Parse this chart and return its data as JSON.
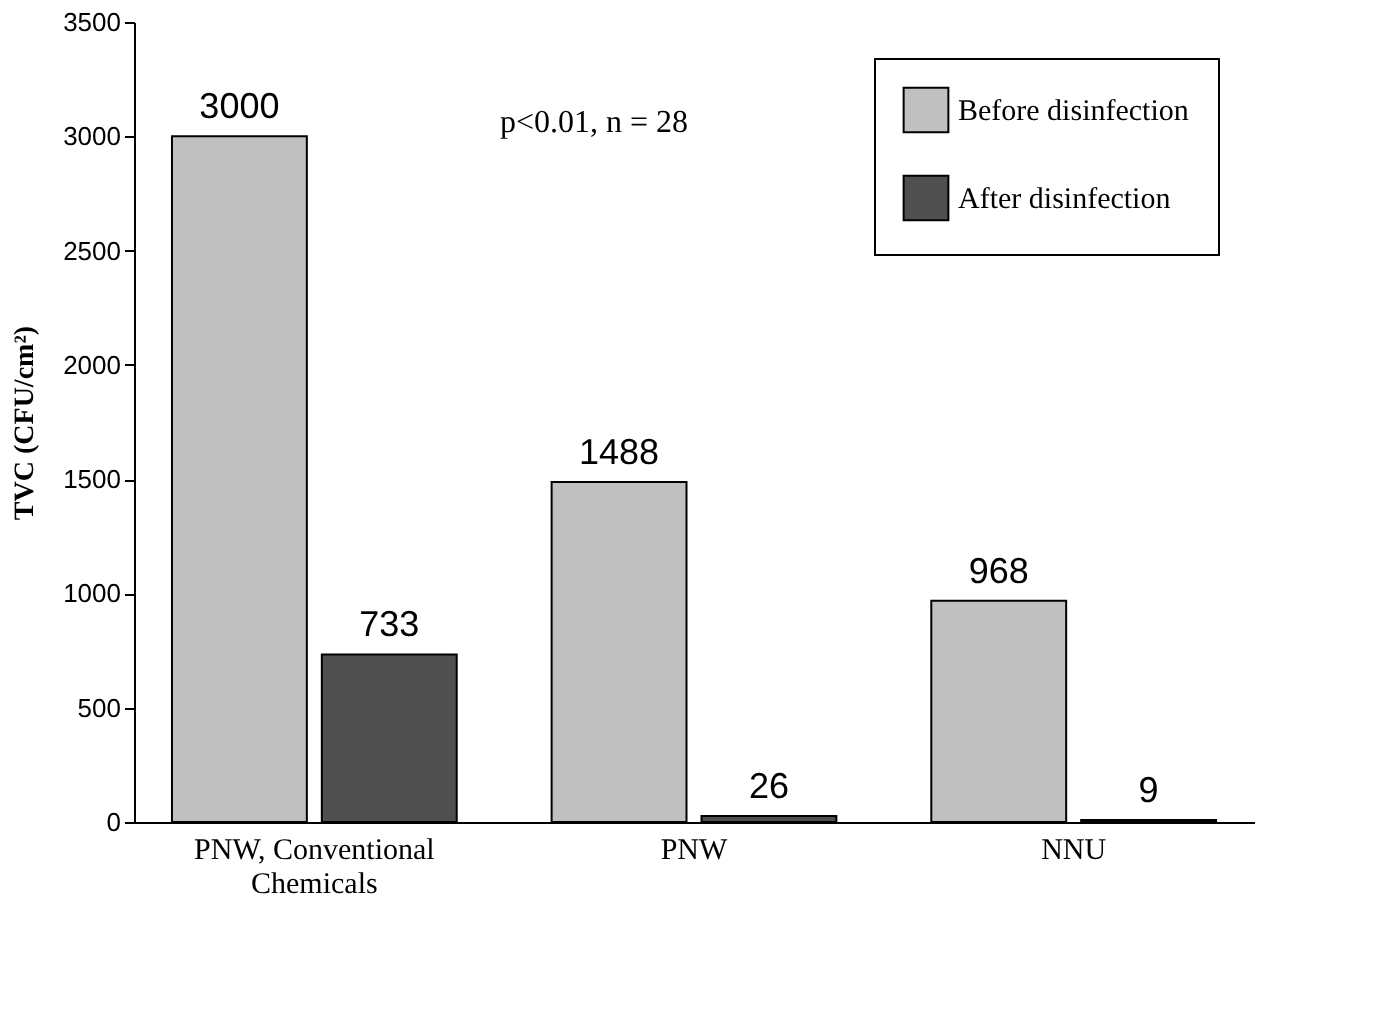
{
  "chart_data": {
    "type": "bar",
    "categories": [
      "PNW, Conventional Chemicals",
      "PNW",
      "NNU"
    ],
    "series": [
      {
        "name": "Before disinfection",
        "color": "#c0c0c0",
        "values": [
          3000,
          1488,
          968
        ]
      },
      {
        "name": "After disinfection",
        "color": "#505050",
        "values": [
          733,
          26,
          9
        ]
      }
    ],
    "ylabel": "TVC (CFU/cm²)",
    "ylim": [
      0,
      3500
    ],
    "yticks": [
      0,
      500,
      1000,
      1500,
      2000,
      2500,
      3000,
      3500
    ],
    "annotations": [
      "p<0.01, n = 28"
    ],
    "data_labels": true,
    "grid": false,
    "legend": "top right"
  }
}
